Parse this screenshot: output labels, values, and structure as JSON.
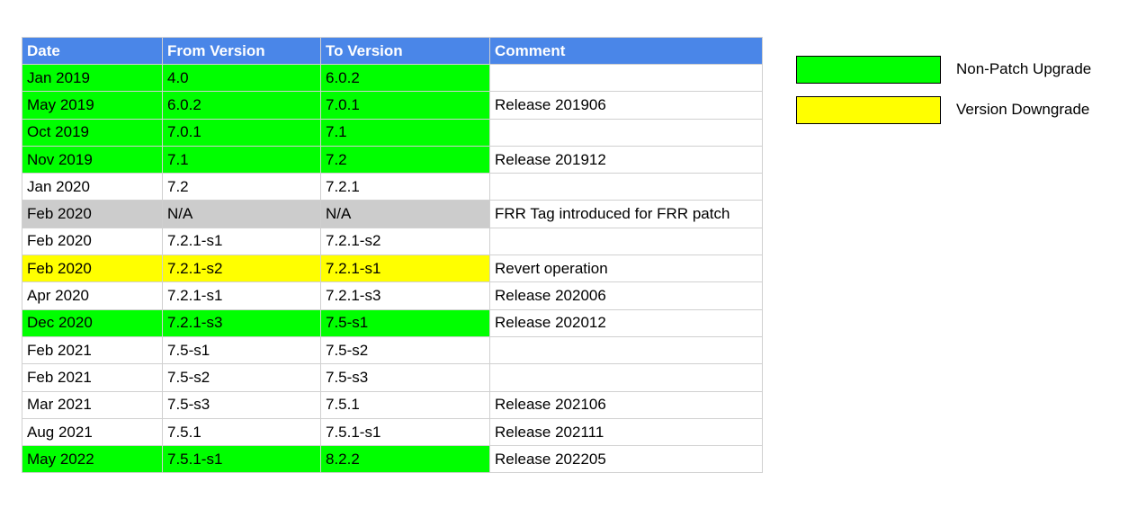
{
  "headers": [
    "Date",
    "From Version",
    "To Version",
    "Comment"
  ],
  "colors": {
    "header": "#4a86e8",
    "green": "#00ff00",
    "yellow": "#ffff00",
    "gray": "#cccccc",
    "white": "#ffffff"
  },
  "rows": [
    {
      "date": "Jan 2019",
      "from": "4.0",
      "to": "6.0.2",
      "comment": "",
      "hl": "green"
    },
    {
      "date": "May 2019",
      "from": "6.0.2",
      "to": "7.0.1",
      "comment": "Release 201906",
      "hl": "green"
    },
    {
      "date": "Oct 2019",
      "from": "7.0.1",
      "to": "7.1",
      "comment": "",
      "hl": "green"
    },
    {
      "date": "Nov 2019",
      "from": "7.1",
      "to": "7.2",
      "comment": "Release 201912",
      "hl": "green"
    },
    {
      "date": "Jan 2020",
      "from": "7.2",
      "to": "7.2.1",
      "comment": "",
      "hl": ""
    },
    {
      "date": "Feb 2020",
      "from": "N/A",
      "to": "N/A",
      "comment": "FRR Tag introduced for FRR patch",
      "hl": "gray"
    },
    {
      "date": "Feb 2020",
      "from": "7.2.1-s1",
      "to": "7.2.1-s2",
      "comment": "",
      "hl": ""
    },
    {
      "date": "Feb 2020",
      "from": "7.2.1-s2",
      "to": "7.2.1-s1",
      "comment": "Revert operation",
      "hl": "yellow"
    },
    {
      "date": "Apr 2020",
      "from": "7.2.1-s1",
      "to": "7.2.1-s3",
      "comment": "Release 202006",
      "hl": ""
    },
    {
      "date": "Dec 2020",
      "from": "7.2.1-s3",
      "to": "7.5-s1",
      "comment": "Release 202012",
      "hl": "green"
    },
    {
      "date": "Feb 2021",
      "from": "7.5-s1",
      "to": "7.5-s2",
      "comment": "",
      "hl": ""
    },
    {
      "date": "Feb 2021",
      "from": "7.5-s2",
      "to": "7.5-s3",
      "comment": "",
      "hl": ""
    },
    {
      "date": "Mar 2021",
      "from": "7.5-s3",
      "to": "7.5.1",
      "comment": "Release 202106",
      "hl": ""
    },
    {
      "date": "Aug 2021",
      "from": "7.5.1",
      "to": "7.5.1-s1",
      "comment": "Release 202111",
      "hl": ""
    },
    {
      "date": "May 2022",
      "from": "7.5.1-s1",
      "to": "8.2.2",
      "comment": "Release 202205",
      "hl": "green"
    }
  ],
  "legend": [
    {
      "label": "Non-Patch Upgrade",
      "color": "green"
    },
    {
      "label": "Version Downgrade",
      "color": "yellow"
    }
  ]
}
